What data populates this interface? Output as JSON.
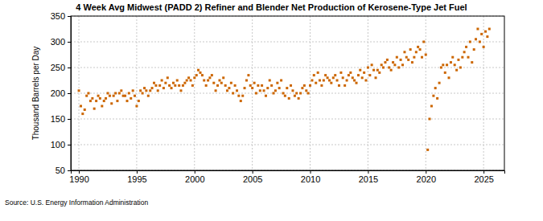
{
  "chart_data": {
    "type": "scatter",
    "title": "4 Week Avg Midwest (PADD 2) Refiner and Blender Net Production of Kerosene-Type Jet Fuel",
    "y_label": "Thousand Barrels per Day",
    "annotations": [
      "Source: U.S. Energy Information Administration"
    ],
    "color": "#cc6600",
    "marker": "square",
    "grid": true,
    "xlim": [
      1989.3,
      2026.8
    ],
    "xticks": [
      1990,
      1995,
      2000,
      2005,
      2010,
      2015,
      2020,
      2025
    ],
    "ylim": [
      50,
      350
    ],
    "yticks": [
      50,
      100,
      150,
      200,
      250,
      300,
      350
    ],
    "x": [
      1990,
      1990.17,
      1990.33,
      1990.5,
      1990.67,
      1990.83,
      1991,
      1991.17,
      1991.33,
      1991.5,
      1991.67,
      1991.83,
      1992,
      1992.17,
      1992.33,
      1992.5,
      1992.67,
      1992.83,
      1993,
      1993.17,
      1993.33,
      1993.5,
      1993.67,
      1993.83,
      1994,
      1994.17,
      1994.33,
      1994.5,
      1994.67,
      1994.83,
      1995,
      1995.17,
      1995.33,
      1995.5,
      1995.67,
      1995.83,
      1996,
      1996.17,
      1996.33,
      1996.5,
      1996.67,
      1996.83,
      1997,
      1997.17,
      1997.33,
      1997.5,
      1997.67,
      1997.83,
      1998,
      1998.17,
      1998.33,
      1998.5,
      1998.67,
      1998.83,
      1999,
      1999.17,
      1999.33,
      1999.5,
      1999.67,
      1999.83,
      2000,
      2000.17,
      2000.33,
      2000.5,
      2000.67,
      2000.83,
      2001,
      2001.17,
      2001.33,
      2001.5,
      2001.67,
      2001.83,
      2002,
      2002.17,
      2002.33,
      2002.5,
      2002.67,
      2002.83,
      2003,
      2003.17,
      2003.33,
      2003.5,
      2003.67,
      2003.83,
      2004,
      2004.17,
      2004.33,
      2004.5,
      2004.67,
      2004.83,
      2005,
      2005.17,
      2005.33,
      2005.5,
      2005.67,
      2005.83,
      2006,
      2006.17,
      2006.33,
      2006.5,
      2006.67,
      2006.83,
      2007,
      2007.17,
      2007.33,
      2007.5,
      2007.67,
      2007.83,
      2008,
      2008.17,
      2008.33,
      2008.5,
      2008.67,
      2008.83,
      2009,
      2009.17,
      2009.33,
      2009.5,
      2009.67,
      2009.83,
      2010,
      2010.17,
      2010.33,
      2010.5,
      2010.67,
      2010.83,
      2011,
      2011.17,
      2011.33,
      2011.5,
      2011.67,
      2011.83,
      2012,
      2012.17,
      2012.33,
      2012.5,
      2012.67,
      2012.83,
      2013,
      2013.17,
      2013.33,
      2013.5,
      2013.67,
      2013.83,
      2014,
      2014.17,
      2014.33,
      2014.5,
      2014.67,
      2014.83,
      2015,
      2015.17,
      2015.33,
      2015.5,
      2015.67,
      2015.83,
      2016,
      2016.17,
      2016.33,
      2016.5,
      2016.67,
      2016.83,
      2017,
      2017.17,
      2017.33,
      2017.5,
      2017.67,
      2017.83,
      2018,
      2018.17,
      2018.33,
      2018.5,
      2018.67,
      2018.83,
      2019,
      2019.17,
      2019.33,
      2019.5,
      2019.67,
      2019.83,
      2020,
      2020.17,
      2020.33,
      2020.5,
      2020.67,
      2020.83,
      2021,
      2021.17,
      2021.33,
      2021.5,
      2021.67,
      2021.83,
      2022,
      2022.17,
      2022.33,
      2022.5,
      2022.67,
      2022.83,
      2023,
      2023.17,
      2023.33,
      2023.5,
      2023.67,
      2023.83,
      2024,
      2024.17,
      2024.33,
      2024.5,
      2024.67,
      2024.83,
      2025,
      2025.17,
      2025.33,
      2025.5
    ],
    "values": [
      205,
      175,
      160,
      168,
      195,
      200,
      185,
      190,
      170,
      185,
      195,
      190,
      175,
      185,
      190,
      200,
      195,
      180,
      195,
      200,
      185,
      200,
      205,
      195,
      195,
      185,
      200,
      190,
      205,
      195,
      175,
      185,
      205,
      200,
      210,
      205,
      195,
      205,
      210,
      220,
      215,
      205,
      215,
      225,
      210,
      220,
      230,
      215,
      210,
      220,
      215,
      225,
      215,
      205,
      215,
      220,
      225,
      230,
      225,
      215,
      230,
      235,
      245,
      240,
      235,
      225,
      215,
      225,
      230,
      235,
      220,
      205,
      215,
      225,
      220,
      230,
      215,
      205,
      210,
      220,
      200,
      215,
      205,
      195,
      185,
      195,
      210,
      225,
      235,
      215,
      210,
      220,
      200,
      215,
      205,
      215,
      205,
      195,
      210,
      225,
      215,
      200,
      205,
      220,
      210,
      225,
      200,
      195,
      210,
      190,
      215,
      205,
      195,
      200,
      190,
      200,
      210,
      215,
      205,
      200,
      215,
      225,
      235,
      220,
      240,
      225,
      215,
      225,
      235,
      230,
      225,
      220,
      230,
      235,
      225,
      215,
      240,
      230,
      215,
      225,
      235,
      240,
      230,
      225,
      220,
      235,
      245,
      230,
      240,
      225,
      250,
      235,
      255,
      245,
      230,
      245,
      240,
      255,
      250,
      260,
      265,
      250,
      245,
      260,
      255,
      270,
      250,
      265,
      255,
      280,
      270,
      265,
      285,
      260,
      270,
      280,
      290,
      285,
      270,
      300,
      275,
      90,
      150,
      175,
      195,
      210,
      190,
      220,
      250,
      255,
      240,
      255,
      230,
      260,
      270,
      255,
      245,
      265,
      250,
      270,
      280,
      290,
      270,
      300,
      260,
      285,
      305,
      325,
      300,
      315,
      290,
      320,
      310,
      325
    ]
  }
}
